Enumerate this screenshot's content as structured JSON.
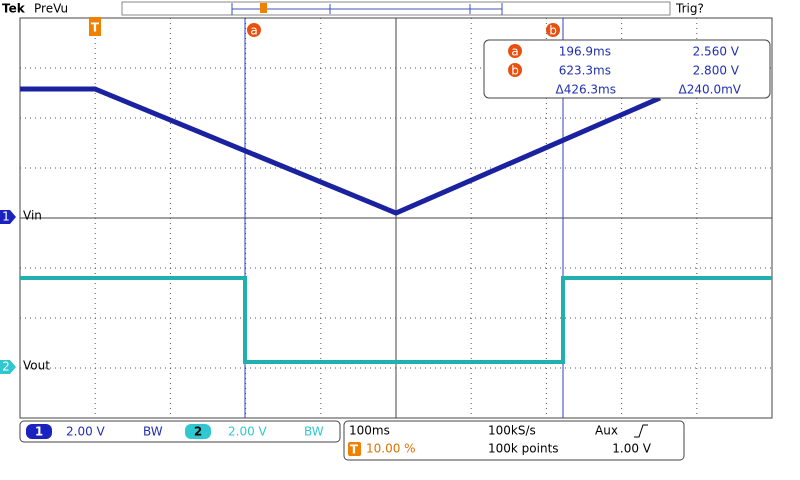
{
  "header": {
    "brand": "Tek",
    "mode": "PreVu",
    "trigger_status": "Trig?"
  },
  "markers": {
    "trigger": "T",
    "cursor_a": "a",
    "cursor_b": "b"
  },
  "channels": [
    {
      "number": "1",
      "label": "Vin",
      "scale": "2.00 V",
      "bandwidth": "BW"
    },
    {
      "number": "2",
      "label": "Vout",
      "scale": "2.00 V",
      "bandwidth": "BW"
    }
  ],
  "readout": {
    "a": {
      "cursor": "a",
      "time": "196.9ms",
      "voltage": "2.560 V"
    },
    "b": {
      "cursor": "b",
      "time": "623.3ms",
      "voltage": "2.800 V"
    },
    "delta": {
      "time": "Δ426.3ms",
      "voltage": "Δ240.0mV"
    }
  },
  "acquisition": {
    "timebase": "100ms",
    "sample_rate": "100kS/s",
    "trigger_source": "Aux",
    "trigger_marker": "T",
    "trigger_position": "10.00 %",
    "record_length": "100k points",
    "trigger_level": "1.00 V"
  }
}
